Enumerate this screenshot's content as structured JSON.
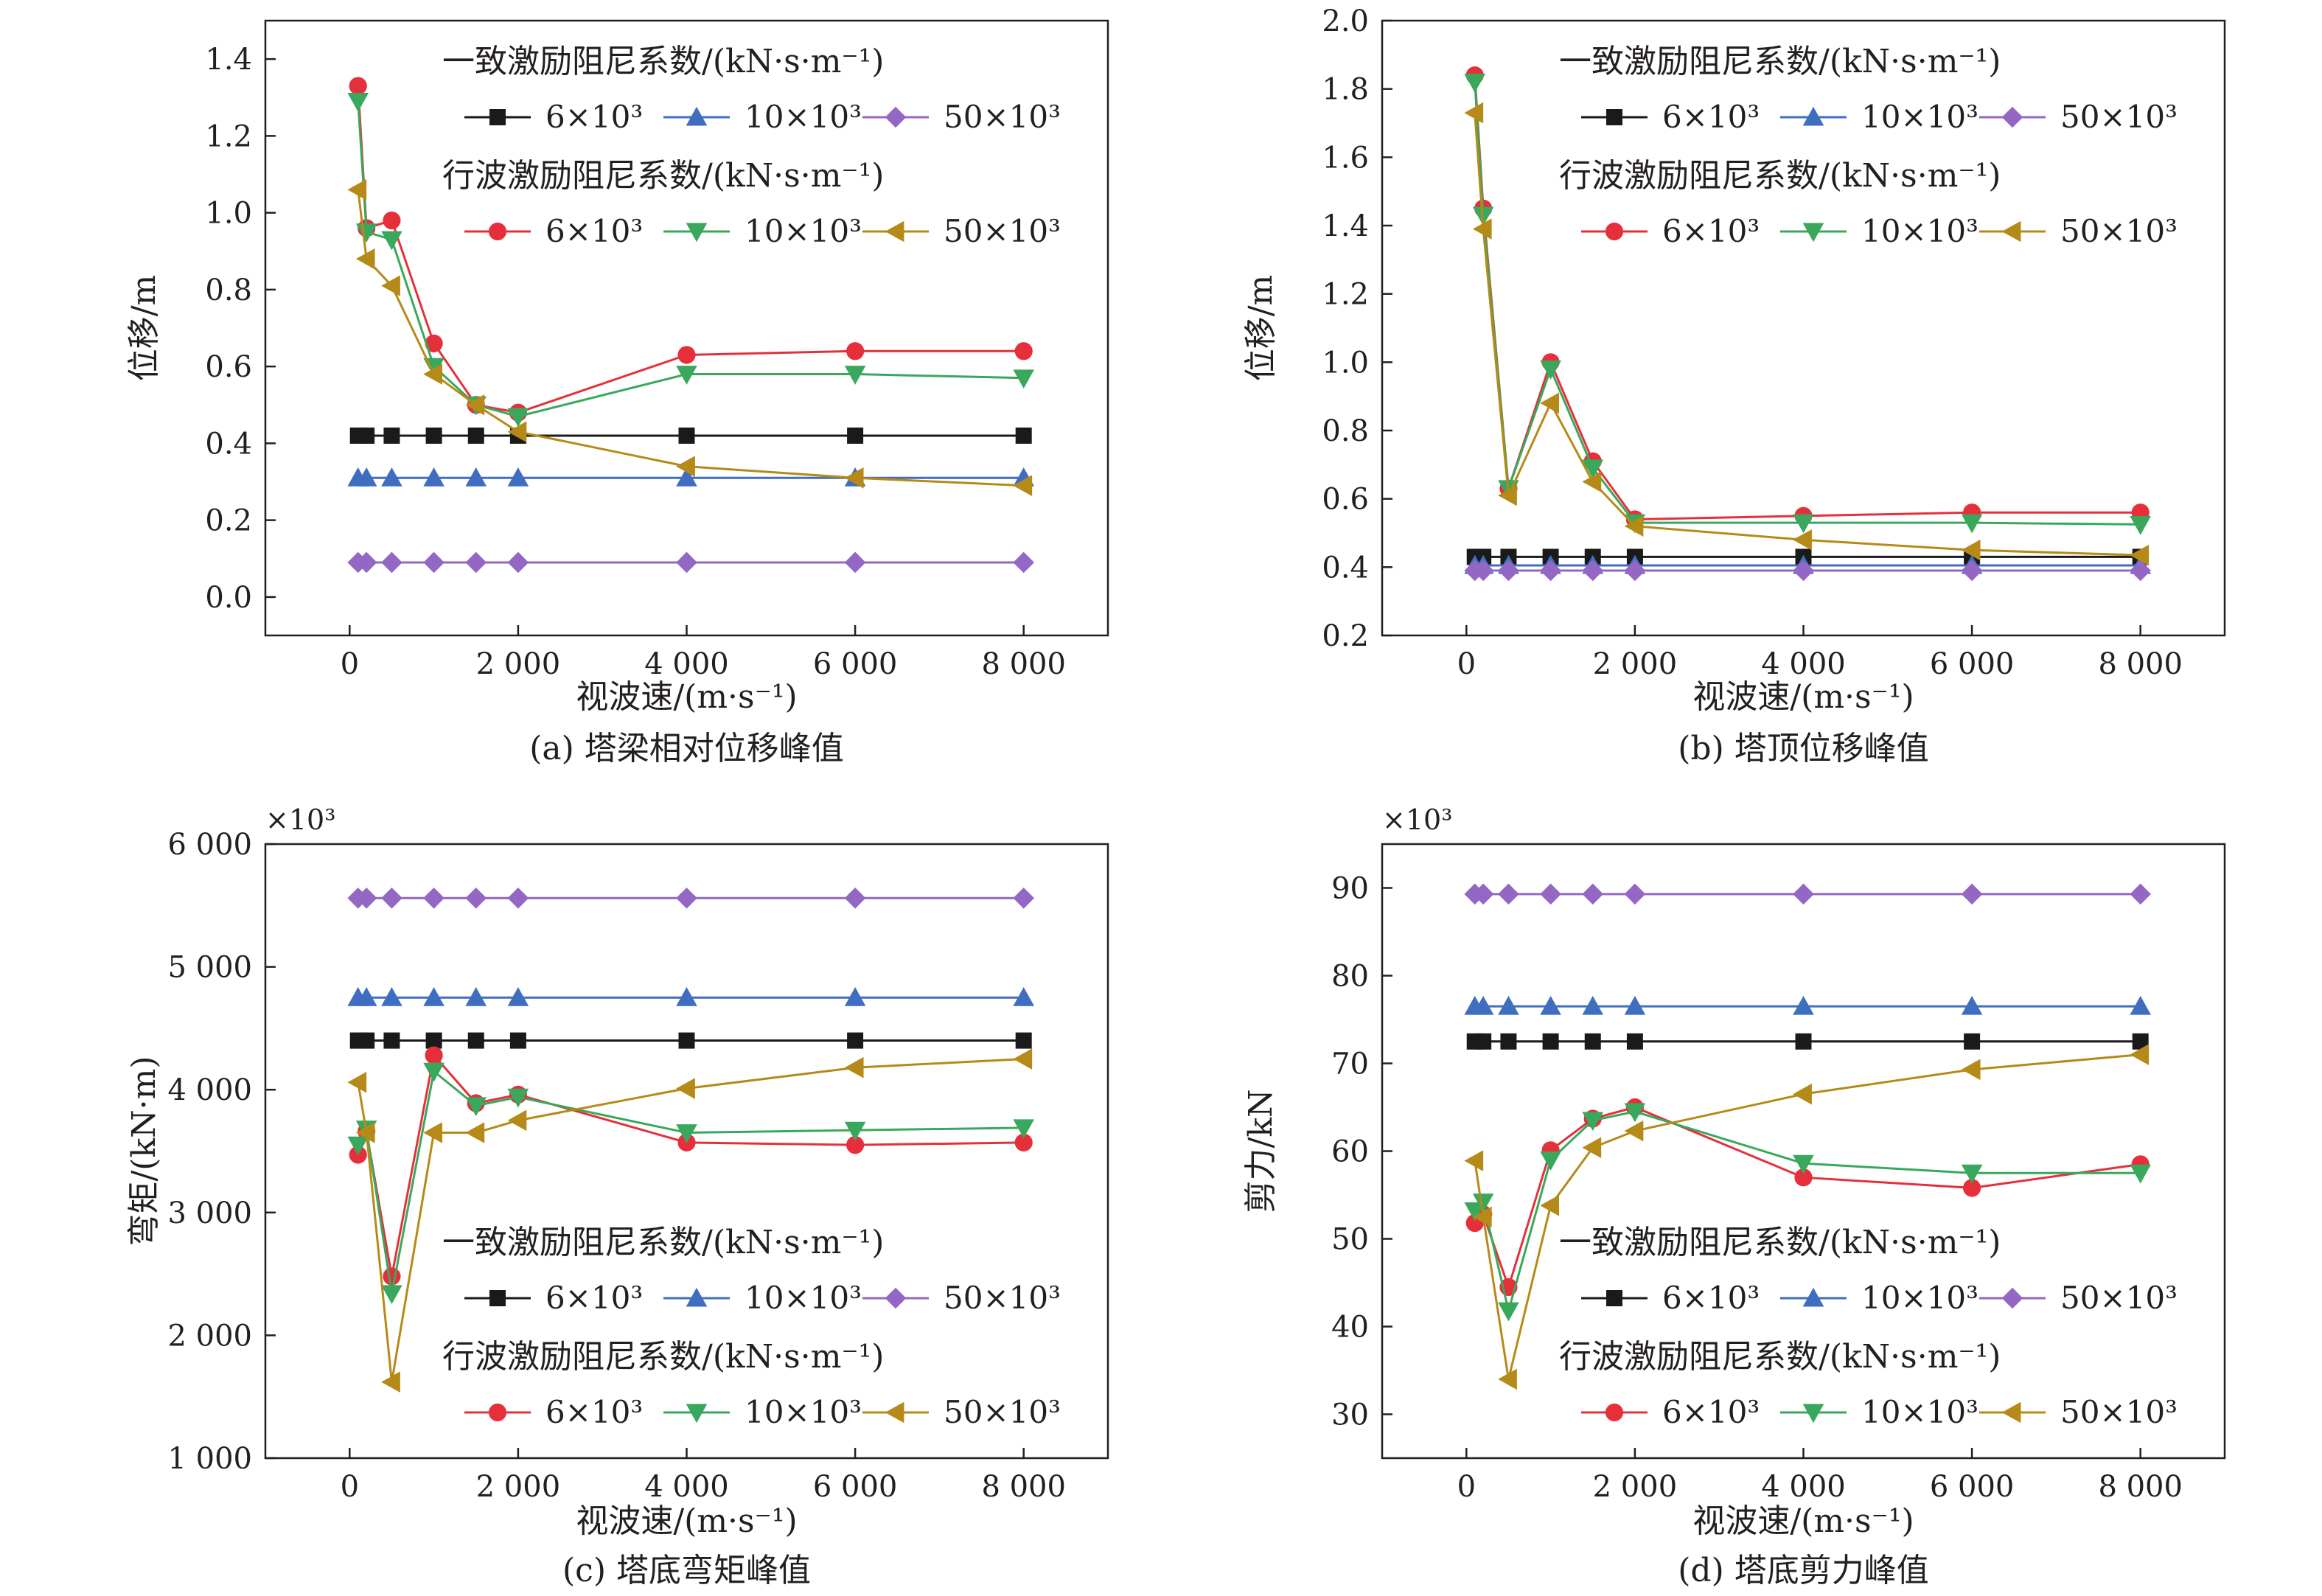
{
  "chart_data": [
    {
      "type": "line",
      "caption": "(a) 塔梁相对位移峰值",
      "xlabel": "视波速/(m·s⁻¹)",
      "ylabel": "位移/m",
      "y_multiplier": "",
      "xlim": [
        -1000,
        9000
      ],
      "ylim": [
        -0.1,
        1.5
      ],
      "x_ticks": [
        0,
        2000,
        4000,
        6000,
        8000
      ],
      "x_tick_labels": [
        "0",
        "2 000",
        "4 000",
        "6 000",
        "8 000"
      ],
      "y_ticks": [
        0.0,
        0.2,
        0.4,
        0.6,
        0.8,
        1.0,
        1.2,
        1.4
      ],
      "y_tick_labels": [
        "0.0",
        "0.2",
        "0.4",
        "0.6",
        "0.8",
        "1.0",
        "1.2",
        "1.4"
      ],
      "legend_position": "top-right",
      "x": [
        100,
        200,
        500,
        1000,
        1500,
        2000,
        4000,
        6000,
        8000
      ],
      "series": [
        {
          "group": 0,
          "label": "6×10³",
          "marker": "square",
          "color": "#1a1a1a",
          "values": [
            0.42,
            0.42,
            0.42,
            0.42,
            0.42,
            0.42,
            0.42,
            0.42,
            0.42
          ]
        },
        {
          "group": 0,
          "label": "10×10³",
          "marker": "triangle-up",
          "color": "#3f6ec1",
          "values": [
            0.31,
            0.31,
            0.31,
            0.31,
            0.31,
            0.31,
            0.31,
            0.31,
            0.31
          ]
        },
        {
          "group": 0,
          "label": "50×10³",
          "marker": "diamond",
          "color": "#9467c4",
          "values": [
            0.09,
            0.09,
            0.09,
            0.09,
            0.09,
            0.09,
            0.09,
            0.09,
            0.09
          ]
        },
        {
          "group": 1,
          "label": "6×10³",
          "marker": "circle",
          "color": "#e5303c",
          "values": [
            1.33,
            0.96,
            0.98,
            0.66,
            0.5,
            0.48,
            0.63,
            0.64,
            0.64
          ]
        },
        {
          "group": 1,
          "label": "10×10³",
          "marker": "triangle-down",
          "color": "#3aa85c",
          "values": [
            1.29,
            0.95,
            0.93,
            0.6,
            0.5,
            0.47,
            0.58,
            0.58,
            0.57
          ]
        },
        {
          "group": 1,
          "label": "50×10³",
          "marker": "triangle-left",
          "color": "#b58a18",
          "values": [
            1.06,
            0.88,
            0.81,
            0.58,
            0.5,
            0.43,
            0.34,
            0.31,
            0.29
          ]
        }
      ]
    },
    {
      "type": "line",
      "caption": "(b) 塔顶位移峰值",
      "xlabel": "视波速/(m·s⁻¹)",
      "ylabel": "位移/m",
      "y_multiplier": "",
      "xlim": [
        -1000,
        9000
      ],
      "ylim": [
        0.2,
        2.0
      ],
      "x_ticks": [
        0,
        2000,
        4000,
        6000,
        8000
      ],
      "x_tick_labels": [
        "0",
        "2 000",
        "4 000",
        "6 000",
        "8 000"
      ],
      "y_ticks": [
        0.2,
        0.4,
        0.6,
        0.8,
        1.0,
        1.2,
        1.4,
        1.6,
        1.8,
        2.0
      ],
      "y_tick_labels": [
        "0.2",
        "0.4",
        "0.6",
        "0.8",
        "1.0",
        "1.2",
        "1.4",
        "1.6",
        "1.8",
        "2.0"
      ],
      "legend_position": "top-right",
      "x": [
        100,
        200,
        500,
        1000,
        1500,
        2000,
        4000,
        6000,
        8000
      ],
      "series": [
        {
          "group": 0,
          "label": "6×10³",
          "marker": "square",
          "color": "#1a1a1a",
          "values": [
            0.43,
            0.43,
            0.43,
            0.43,
            0.43,
            0.43,
            0.43,
            0.43,
            0.43
          ]
        },
        {
          "group": 0,
          "label": "10×10³",
          "marker": "triangle-up",
          "color": "#3f6ec1",
          "values": [
            0.405,
            0.405,
            0.405,
            0.405,
            0.405,
            0.405,
            0.405,
            0.405,
            0.405
          ]
        },
        {
          "group": 0,
          "label": "50×10³",
          "marker": "diamond",
          "color": "#9467c4",
          "values": [
            0.39,
            0.39,
            0.39,
            0.39,
            0.39,
            0.39,
            0.39,
            0.39,
            0.39
          ]
        },
        {
          "group": 1,
          "label": "6×10³",
          "marker": "circle",
          "color": "#e5303c",
          "values": [
            1.84,
            1.45,
            0.63,
            1.0,
            0.71,
            0.54,
            0.55,
            0.56,
            0.56
          ]
        },
        {
          "group": 1,
          "label": "10×10³",
          "marker": "triangle-down",
          "color": "#3aa85c",
          "values": [
            1.82,
            1.43,
            0.63,
            0.98,
            0.69,
            0.53,
            0.53,
            0.53,
            0.525
          ]
        },
        {
          "group": 1,
          "label": "50×10³",
          "marker": "triangle-left",
          "color": "#b58a18",
          "values": [
            1.73,
            1.39,
            0.61,
            0.88,
            0.65,
            0.52,
            0.48,
            0.45,
            0.435
          ]
        }
      ]
    },
    {
      "type": "line",
      "caption": "(c) 塔底弯矩峰值",
      "xlabel": "视波速/(m·s⁻¹)",
      "ylabel": "弯矩/(kN·m)",
      "y_multiplier": "×10³",
      "xlim": [
        -1000,
        9000
      ],
      "ylim": [
        1000,
        6000
      ],
      "x_ticks": [
        0,
        2000,
        4000,
        6000,
        8000
      ],
      "x_tick_labels": [
        "0",
        "2 000",
        "4 000",
        "6 000",
        "8 000"
      ],
      "y_ticks": [
        1000,
        2000,
        3000,
        4000,
        5000,
        6000
      ],
      "y_tick_labels": [
        "1 000",
        "2 000",
        "3 000",
        "4 000",
        "5 000",
        "6 000"
      ],
      "legend_position": "bottom-right",
      "x": [
        100,
        200,
        500,
        1000,
        1500,
        2000,
        4000,
        6000,
        8000
      ],
      "series": [
        {
          "group": 0,
          "label": "6×10³",
          "marker": "square",
          "color": "#1a1a1a",
          "values": [
            4400,
            4400,
            4400,
            4400,
            4400,
            4400,
            4400,
            4400,
            4400
          ]
        },
        {
          "group": 0,
          "label": "10×10³",
          "marker": "triangle-up",
          "color": "#3f6ec1",
          "values": [
            4750,
            4750,
            4750,
            4750,
            4750,
            4750,
            4750,
            4750,
            4750
          ]
        },
        {
          "group": 0,
          "label": "50×10³",
          "marker": "diamond",
          "color": "#9467c4",
          "values": [
            5560,
            5560,
            5560,
            5560,
            5560,
            5560,
            5560,
            5560,
            5560
          ]
        },
        {
          "group": 1,
          "label": "6×10³",
          "marker": "circle",
          "color": "#e5303c",
          "values": [
            3470,
            3660,
            2480,
            4280,
            3890,
            3960,
            3570,
            3550,
            3570
          ]
        },
        {
          "group": 1,
          "label": "10×10³",
          "marker": "triangle-down",
          "color": "#3aa85c",
          "values": [
            3550,
            3680,
            2340,
            4150,
            3870,
            3940,
            3650,
            3670,
            3690
          ]
        },
        {
          "group": 1,
          "label": "50×10³",
          "marker": "triangle-left",
          "color": "#b58a18",
          "values": [
            4060,
            3650,
            1620,
            3650,
            3650,
            3750,
            4010,
            4180,
            4250
          ]
        }
      ]
    },
    {
      "type": "line",
      "caption": "(d) 塔底剪力峰值",
      "xlabel": "视波速/(m·s⁻¹)",
      "ylabel": "剪力/kN",
      "y_multiplier": "×10³",
      "xlim": [
        -1000,
        9000
      ],
      "ylim": [
        25,
        95
      ],
      "x_ticks": [
        0,
        2000,
        4000,
        6000,
        8000
      ],
      "x_tick_labels": [
        "0",
        "2 000",
        "4 000",
        "6 000",
        "8 000"
      ],
      "y_ticks": [
        30,
        40,
        50,
        60,
        70,
        80,
        90
      ],
      "y_tick_labels": [
        "30",
        "40",
        "50",
        "60",
        "70",
        "80",
        "90"
      ],
      "legend_position": "bottom-right",
      "x": [
        100,
        200,
        500,
        1000,
        1500,
        2000,
        4000,
        6000,
        8000
      ],
      "series": [
        {
          "group": 0,
          "label": "6×10³",
          "marker": "square",
          "color": "#1a1a1a",
          "values": [
            72.5,
            72.5,
            72.5,
            72.5,
            72.5,
            72.5,
            72.5,
            72.5,
            72.5
          ]
        },
        {
          "group": 0,
          "label": "10×10³",
          "marker": "triangle-up",
          "color": "#3f6ec1",
          "values": [
            76.5,
            76.5,
            76.5,
            76.5,
            76.5,
            76.5,
            76.5,
            76.5,
            76.5
          ]
        },
        {
          "group": 0,
          "label": "50×10³",
          "marker": "diamond",
          "color": "#9467c4",
          "values": [
            89.3,
            89.3,
            89.3,
            89.3,
            89.3,
            89.3,
            89.3,
            89.3,
            89.3
          ]
        },
        {
          "group": 1,
          "label": "6×10³",
          "marker": "circle",
          "color": "#e5303c",
          "values": [
            51.8,
            52.8,
            44.5,
            60.1,
            63.7,
            65.0,
            57.0,
            55.8,
            58.5
          ]
        },
        {
          "group": 1,
          "label": "10×10³",
          "marker": "triangle-down",
          "color": "#3aa85c",
          "values": [
            53.2,
            54.2,
            41.8,
            59.0,
            63.5,
            64.5,
            58.6,
            57.5,
            57.5
          ]
        },
        {
          "group": 1,
          "label": "50×10³",
          "marker": "triangle-left",
          "color": "#b58a18",
          "values": [
            58.9,
            52.5,
            34.0,
            53.8,
            60.4,
            62.3,
            66.5,
            69.3,
            71.0
          ]
        }
      ]
    }
  ],
  "legend": {
    "uniform_title": "一致激励阻尼系数/(kN·s·m⁻¹)",
    "traveling_title": "行波激励阻尼系数/(kN·s·m⁻¹)"
  }
}
